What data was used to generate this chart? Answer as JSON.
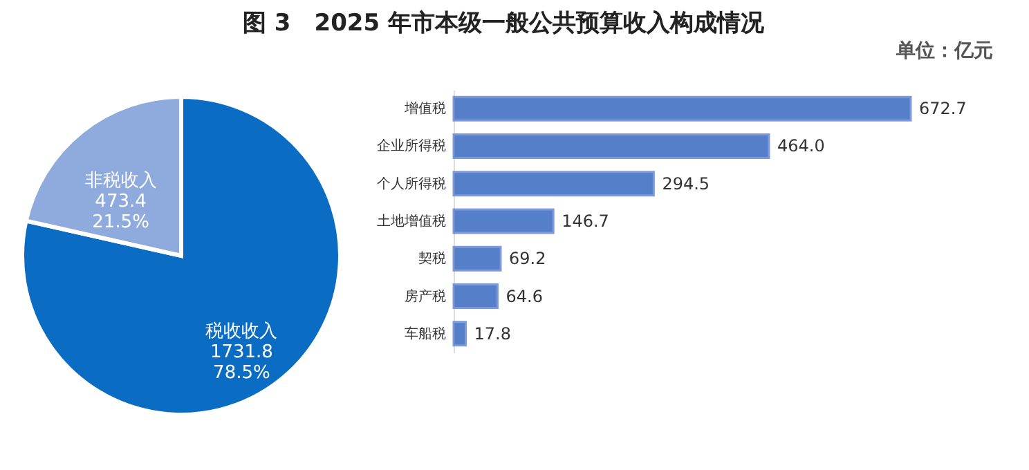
{
  "chart_data": [
    {
      "type": "pie",
      "title": "图 3　2025 年市本级一般公共预算收入构成情况",
      "categories": [
        "税收收入",
        "非税收入"
      ],
      "values": [
        1731.8,
        473.4
      ],
      "colors": [
        "#0b6cc4",
        "#8faadc"
      ],
      "value_labels": [
        "1731.8\n78.5%",
        "473.4\n21.5%"
      ]
    },
    {
      "type": "bar",
      "orientation": "horizontal",
      "annotations": [
        "单位：亿元"
      ],
      "categories": [
        "增值税",
        "企业所得税",
        "个人所得税",
        "土地增值税",
        "契税",
        "房产税",
        "车船税"
      ],
      "values": [
        672.7,
        464.0,
        294.5,
        146.7,
        69.2,
        64.6,
        17.8
      ],
      "color": "#4472c4",
      "value_labels": [
        "672.7",
        "464.0",
        "294.5",
        "146.7",
        "69.2",
        "64.6",
        "17.8"
      ]
    }
  ]
}
